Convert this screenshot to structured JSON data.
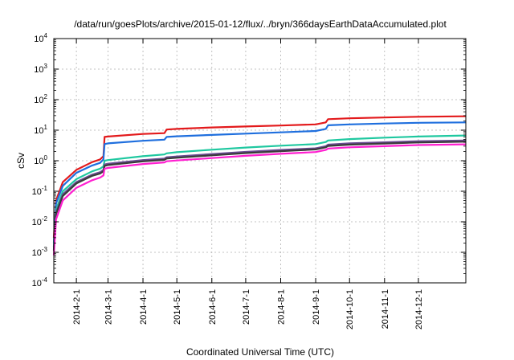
{
  "chart_data": {
    "type": "line",
    "title": "/data/run/goesPlots/archive/2015-01-12/flux/../bryn/366daysEarthDataAccumulated.plot",
    "xlabel": "Coordinated Universal Time (UTC)",
    "ylabel": "cSv",
    "y_scale": "log",
    "ylim": [
      0.0001,
      10000
    ],
    "y_ticks": [
      {
        "value": 0.0001,
        "base": "10",
        "exp": "-4"
      },
      {
        "value": 0.001,
        "base": "10",
        "exp": "-3"
      },
      {
        "value": 0.01,
        "base": "10",
        "exp": "-2"
      },
      {
        "value": 0.1,
        "base": "10",
        "exp": "-1"
      },
      {
        "value": 1,
        "base": "10",
        "exp": "0"
      },
      {
        "value": 10,
        "base": "10",
        "exp": "1"
      },
      {
        "value": 100,
        "base": "10",
        "exp": "2"
      },
      {
        "value": 1000,
        "base": "10",
        "exp": "3"
      },
      {
        "value": 10000,
        "base": "10",
        "exp": "4"
      }
    ],
    "xlim": [
      "2014-01-12",
      "2015-01-12"
    ],
    "x_ticks": [
      "2014-2-1",
      "2014-3-1",
      "2014-4-1",
      "2014-5-1",
      "2014-6-1",
      "2014-7-1",
      "2014-8-1",
      "2014-9-1",
      "2014-10-1",
      "2014-11-1",
      "2014-12-1"
    ],
    "grid": true,
    "legend": "none",
    "series": [
      {
        "color": "#e31a1c",
        "x": [
          "2014-01-12",
          "2014-01-14",
          "2014-01-20",
          "2014-02-01",
          "2014-02-15",
          "2014-02-22",
          "2014-02-25",
          "2014-02-26",
          "2014-03-01",
          "2014-04-01",
          "2014-04-20",
          "2014-04-22",
          "2014-05-01",
          "2014-06-01",
          "2014-07-01",
          "2014-08-01",
          "2014-09-01",
          "2014-09-10",
          "2014-09-12",
          "2014-10-01",
          "2014-11-01",
          "2014-12-01",
          "2015-01-12"
        ],
        "y": [
          0.003,
          0.05,
          0.2,
          0.5,
          0.9,
          1.1,
          1.4,
          6,
          6.2,
          7.5,
          8,
          10.5,
          11,
          12.3,
          13.2,
          14.2,
          15.5,
          18,
          23,
          24.5,
          26,
          27.5,
          28.5
        ]
      },
      {
        "color": "#1f6fde",
        "x": [
          "2014-01-12",
          "2014-01-14",
          "2014-01-20",
          "2014-02-01",
          "2014-02-15",
          "2014-02-22",
          "2014-02-25",
          "2014-02-26",
          "2014-03-01",
          "2014-04-01",
          "2014-04-20",
          "2014-04-22",
          "2014-05-01",
          "2014-06-01",
          "2014-07-01",
          "2014-08-01",
          "2014-09-01",
          "2014-09-10",
          "2014-09-12",
          "2014-10-01",
          "2014-11-01",
          "2014-12-01",
          "2015-01-12"
        ],
        "y": [
          0.002,
          0.04,
          0.15,
          0.4,
          0.7,
          0.85,
          1.1,
          3.5,
          3.7,
          4.5,
          4.9,
          6,
          6.3,
          7,
          7.7,
          8.5,
          9.4,
          11,
          14.5,
          15.5,
          16.5,
          17.5,
          18
        ]
      },
      {
        "color": "#1fc8a0",
        "x": [
          "2014-01-12",
          "2014-01-14",
          "2014-01-20",
          "2014-02-01",
          "2014-02-15",
          "2014-02-22",
          "2014-02-25",
          "2014-02-26",
          "2014-03-01",
          "2014-04-01",
          "2014-04-20",
          "2014-04-22",
          "2014-05-01",
          "2014-06-01",
          "2014-07-01",
          "2014-08-01",
          "2014-09-01",
          "2014-09-10",
          "2014-09-12",
          "2014-10-01",
          "2014-11-01",
          "2014-12-01",
          "2015-01-12"
        ],
        "y": [
          0.0015,
          0.025,
          0.1,
          0.25,
          0.45,
          0.55,
          0.65,
          1.0,
          1.05,
          1.4,
          1.6,
          1.75,
          1.9,
          2.3,
          2.7,
          3.1,
          3.5,
          4.1,
          4.6,
          5.1,
          5.7,
          6.2,
          6.7
        ]
      },
      {
        "color": "#6a4c93",
        "x": [
          "2014-01-12",
          "2014-01-14",
          "2014-01-20",
          "2014-02-01",
          "2014-02-15",
          "2014-02-22",
          "2014-02-25",
          "2014-02-26",
          "2014-03-01",
          "2014-04-01",
          "2014-04-20",
          "2014-04-22",
          "2014-05-01",
          "2014-06-01",
          "2014-07-01",
          "2014-08-01",
          "2014-09-01",
          "2014-09-10",
          "2014-09-12",
          "2014-10-01",
          "2014-11-01",
          "2014-12-01",
          "2015-01-12"
        ],
        "y": [
          0.0012,
          0.02,
          0.08,
          0.2,
          0.35,
          0.42,
          0.5,
          0.75,
          0.8,
          1.05,
          1.18,
          1.3,
          1.38,
          1.65,
          1.95,
          2.25,
          2.55,
          3.0,
          3.35,
          3.7,
          4.0,
          4.35,
          4.6
        ]
      },
      {
        "color": "#3a3a3a",
        "x": [
          "2014-01-12",
          "2014-01-14",
          "2014-01-20",
          "2014-02-01",
          "2014-02-15",
          "2014-02-22",
          "2014-02-25",
          "2014-02-26",
          "2014-03-01",
          "2014-04-01",
          "2014-04-20",
          "2014-04-22",
          "2014-05-01",
          "2014-06-01",
          "2014-07-01",
          "2014-08-01",
          "2014-09-01",
          "2014-09-10",
          "2014-09-12",
          "2014-10-01",
          "2014-11-01",
          "2014-12-01",
          "2015-01-12"
        ],
        "y": [
          0.0011,
          0.018,
          0.07,
          0.18,
          0.32,
          0.38,
          0.45,
          0.68,
          0.72,
          0.95,
          1.07,
          1.18,
          1.25,
          1.5,
          1.78,
          2.05,
          2.35,
          2.75,
          3.05,
          3.35,
          3.65,
          3.95,
          4.2
        ]
      },
      {
        "color": "#ff1fd0",
        "x": [
          "2014-01-12",
          "2014-01-14",
          "2014-01-20",
          "2014-02-01",
          "2014-02-15",
          "2014-02-22",
          "2014-02-25",
          "2014-02-26",
          "2014-03-01",
          "2014-04-01",
          "2014-04-20",
          "2014-04-22",
          "2014-05-01",
          "2014-06-01",
          "2014-07-01",
          "2014-08-01",
          "2014-09-01",
          "2014-09-10",
          "2014-09-12",
          "2014-10-01",
          "2014-11-01",
          "2014-12-01",
          "2015-01-12"
        ],
        "y": [
          0.0008,
          0.012,
          0.05,
          0.13,
          0.23,
          0.28,
          0.33,
          0.55,
          0.58,
          0.78,
          0.88,
          0.96,
          1.02,
          1.22,
          1.45,
          1.68,
          1.92,
          2.25,
          2.5,
          2.75,
          3.0,
          3.25,
          3.45
        ]
      }
    ]
  }
}
